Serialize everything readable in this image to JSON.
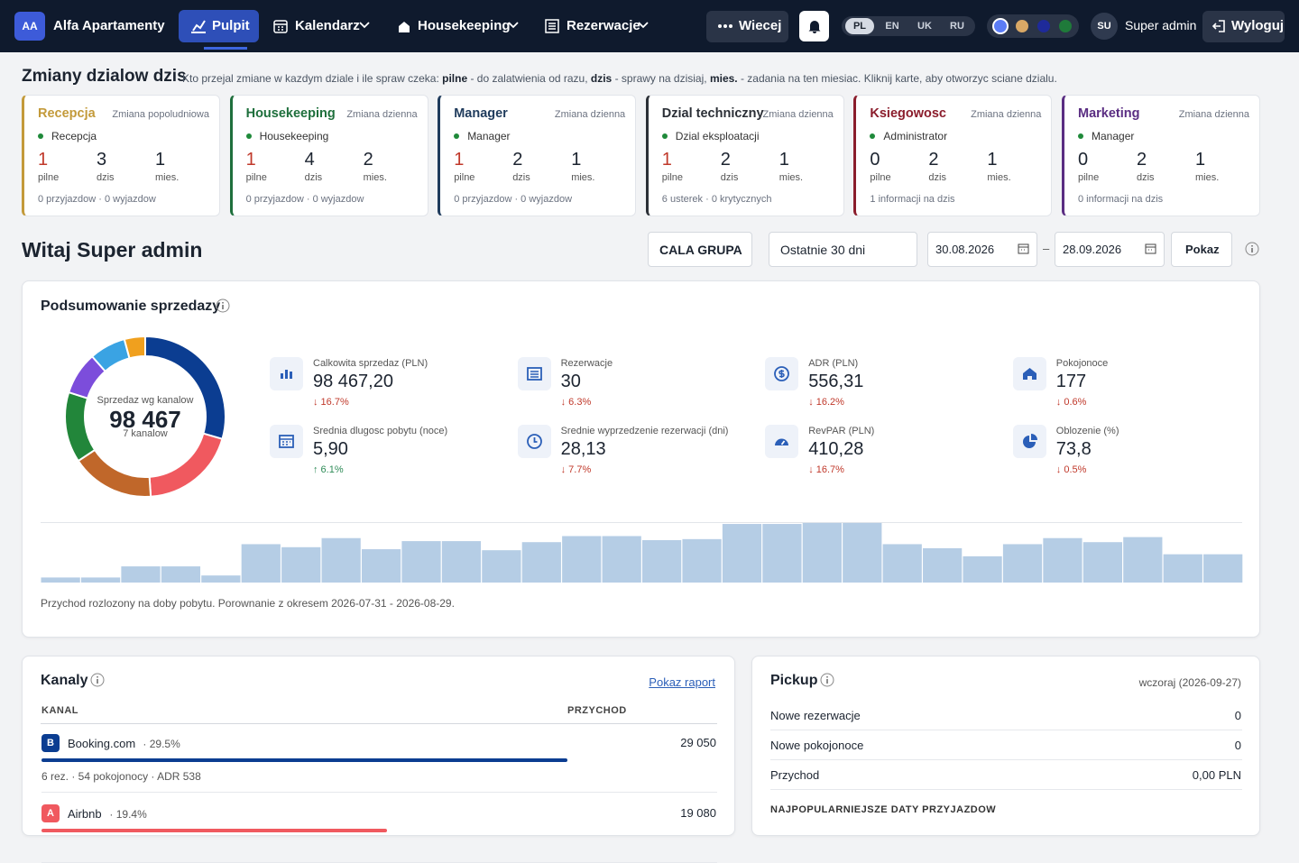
{
  "nav": {
    "brand_initials": "AA",
    "brand": "Alfa Apartamenty",
    "items": [
      "Pulpit",
      "Kalendarz",
      "Housekeeping",
      "Rezerwacje"
    ],
    "more": "Wiecej",
    "languages": [
      "PL",
      "EN",
      "UK",
      "RU"
    ],
    "theme_colors": [
      "#5b7cf5",
      "#d9a866",
      "#1e2a9a",
      "#1f7a3a"
    ],
    "user_initials": "SU",
    "user": "Super admin",
    "logout": "Wyloguj"
  },
  "shifts": {
    "title": "Zmiany dzialow dzis",
    "description": [
      "Kto przejal zmiane w kazdym dziale i ile spraw czeka: ",
      "pilne",
      " - do zalatwienia od razu, ",
      "dzis",
      " - sprawy na dzisiaj, ",
      "mies.",
      " - zadania na ten miesiac. Kliknij karte, aby otworzyc sciane dzialu."
    ],
    "cards": [
      {
        "name": "Recepcja",
        "shift": "Zmiana popoludniowa",
        "person": "Recepcja",
        "color": "#c39a3a",
        "counts": [
          {
            "value": 1,
            "label": "pilne"
          },
          {
            "value": 3,
            "label": "dzis"
          },
          {
            "value": 1,
            "label": "mies."
          }
        ],
        "footer": "0 przyjazdow · 0 wyjazdow"
      },
      {
        "name": "Housekeeping",
        "shift": "Zmiana dzienna",
        "person": "Housekeeping",
        "color": "#1e6f3c",
        "counts": [
          {
            "value": 1,
            "label": "pilne"
          },
          {
            "value": 4,
            "label": "dzis"
          },
          {
            "value": 2,
            "label": "mies."
          }
        ],
        "footer": "0 przyjazdow · 0 wyjazdow"
      },
      {
        "name": "Manager",
        "shift": "Zmiana dzienna",
        "person": "Manager",
        "color": "#1f3b5c",
        "counts": [
          {
            "value": 1,
            "label": "pilne"
          },
          {
            "value": 2,
            "label": "dzis"
          },
          {
            "value": 1,
            "label": "mies."
          }
        ],
        "footer": "0 przyjazdow · 0 wyjazdow"
      },
      {
        "name": "Dzial techniczny",
        "shift": "Zmiana dzienna",
        "person": "Dzial eksploatacji",
        "color": "#2b2f36",
        "counts": [
          {
            "value": 1,
            "label": "pilne"
          },
          {
            "value": 2,
            "label": "dzis"
          },
          {
            "value": 1,
            "label": "mies."
          }
        ],
        "footer": "6 usterek · 0 krytycznych"
      },
      {
        "name": "Ksiegowosc",
        "shift": "Zmiana dzienna",
        "person": "Administrator",
        "color": "#8b1d2c",
        "counts": [
          {
            "value": 0,
            "label": "pilne"
          },
          {
            "value": 2,
            "label": "dzis"
          },
          {
            "value": 1,
            "label": "mies."
          }
        ],
        "footer": "1 informacji na dzis"
      },
      {
        "name": "Marketing",
        "shift": "Zmiana dzienna",
        "person": "Manager",
        "color": "#5a2d82",
        "counts": [
          {
            "value": 0,
            "label": "pilne"
          },
          {
            "value": 2,
            "label": "dzis"
          },
          {
            "value": 1,
            "label": "mies."
          }
        ],
        "footer": "0 informacji na dzis"
      }
    ]
  },
  "welcome": {
    "title": "Witaj Super admin",
    "scope": "CALA GRUPA",
    "period": "Ostatnie 30 dni",
    "date_from": "30.08.2026",
    "separator": "–",
    "date_to": "28.09.2026",
    "submit": "Pokaz"
  },
  "sales": {
    "title": "Podsumowanie sprzedazy",
    "donut": {
      "type": "pie",
      "label": "Sprzedaz wg kanalow",
      "total": "98 467",
      "count_label": "7 kanalow",
      "values": [
        29.5,
        19.4,
        16.8,
        14.2,
        8.6,
        7.3,
        4.2
      ],
      "colors": [
        "#0b3d91",
        "#f0595f",
        "#c0672a",
        "#22863a",
        "#7c4ddb",
        "#3aa3e3",
        "#f0a01e"
      ]
    },
    "kpis": [
      {
        "label": "Calkowita sprzedaz (PLN)",
        "value": "98 467,20",
        "change": "↓ 16.7%",
        "trend": "down",
        "icon": "chart"
      },
      {
        "label": "Rezerwacje",
        "value": "30",
        "change": "↓ 6.3%",
        "trend": "down",
        "icon": "list"
      },
      {
        "label": "ADR (PLN)",
        "value": "556,31",
        "change": "↓ 16.2%",
        "trend": "down",
        "icon": "dollar"
      },
      {
        "label": "Pokojonoce",
        "value": "177",
        "change": "↓ 0.6%",
        "trend": "down",
        "icon": "home"
      },
      {
        "label": "Srednia dlugosc pobytu (noce)",
        "value": "5,90",
        "change": "↑ 6.1%",
        "trend": "up",
        "icon": "calendar"
      },
      {
        "label": "Srednie wyprzedzenie rezerwacji (dni)",
        "value": "28,13",
        "change": "↓ 7.7%",
        "trend": "down",
        "icon": "clock"
      },
      {
        "label": "RevPAR (PLN)",
        "value": "410,28",
        "change": "↓ 16.7%",
        "trend": "down",
        "icon": "gauge"
      },
      {
        "label": "Oblozenie (%)",
        "value": "73,8",
        "change": "↓ 0.5%",
        "trend": "down",
        "icon": "pie"
      }
    ],
    "daily": {
      "type": "bar",
      "color": "#b5cde5",
      "values": [
        5,
        5,
        16,
        16,
        7,
        38,
        35,
        44,
        33,
        41,
        41,
        32,
        40,
        46,
        46,
        42,
        43,
        58,
        58,
        59,
        59,
        38,
        34,
        26,
        38,
        44,
        40,
        45,
        28,
        28
      ]
    },
    "caption": "Przychod rozlozony na doby pobytu. Porownanie z okresem 2026-07-31 - 2026-08-29."
  },
  "channels": {
    "title": "Kanaly",
    "link": "Pokaz raport",
    "columns": [
      "KANAL",
      "PRZYCHOD"
    ],
    "rows": [
      {
        "badge": "B",
        "badge_color": "#0b3d91",
        "name": "Booking.com",
        "share": 29.5,
        "share_label": "· 29.5%",
        "revenue": "29 050",
        "details": "6 rez. · 54 pokojonocy · ADR 538"
      },
      {
        "badge": "A",
        "badge_color": "#f0595f",
        "name": "Airbnb",
        "share": 19.4,
        "share_label": "· 19.4%",
        "revenue": "19 080"
      }
    ]
  },
  "pickup": {
    "title": "Pickup",
    "date": "wczoraj (2026-09-27)",
    "rows": [
      {
        "label": "Nowe rezerwacje",
        "value": 0
      },
      {
        "label": "Nowe pokojonoce",
        "value": 0
      },
      {
        "label": "Przychod",
        "value": "0,00 PLN"
      }
    ],
    "subheading": "NAJPOPULARNIEJSZE DATY PRZYJAZDOW"
  }
}
